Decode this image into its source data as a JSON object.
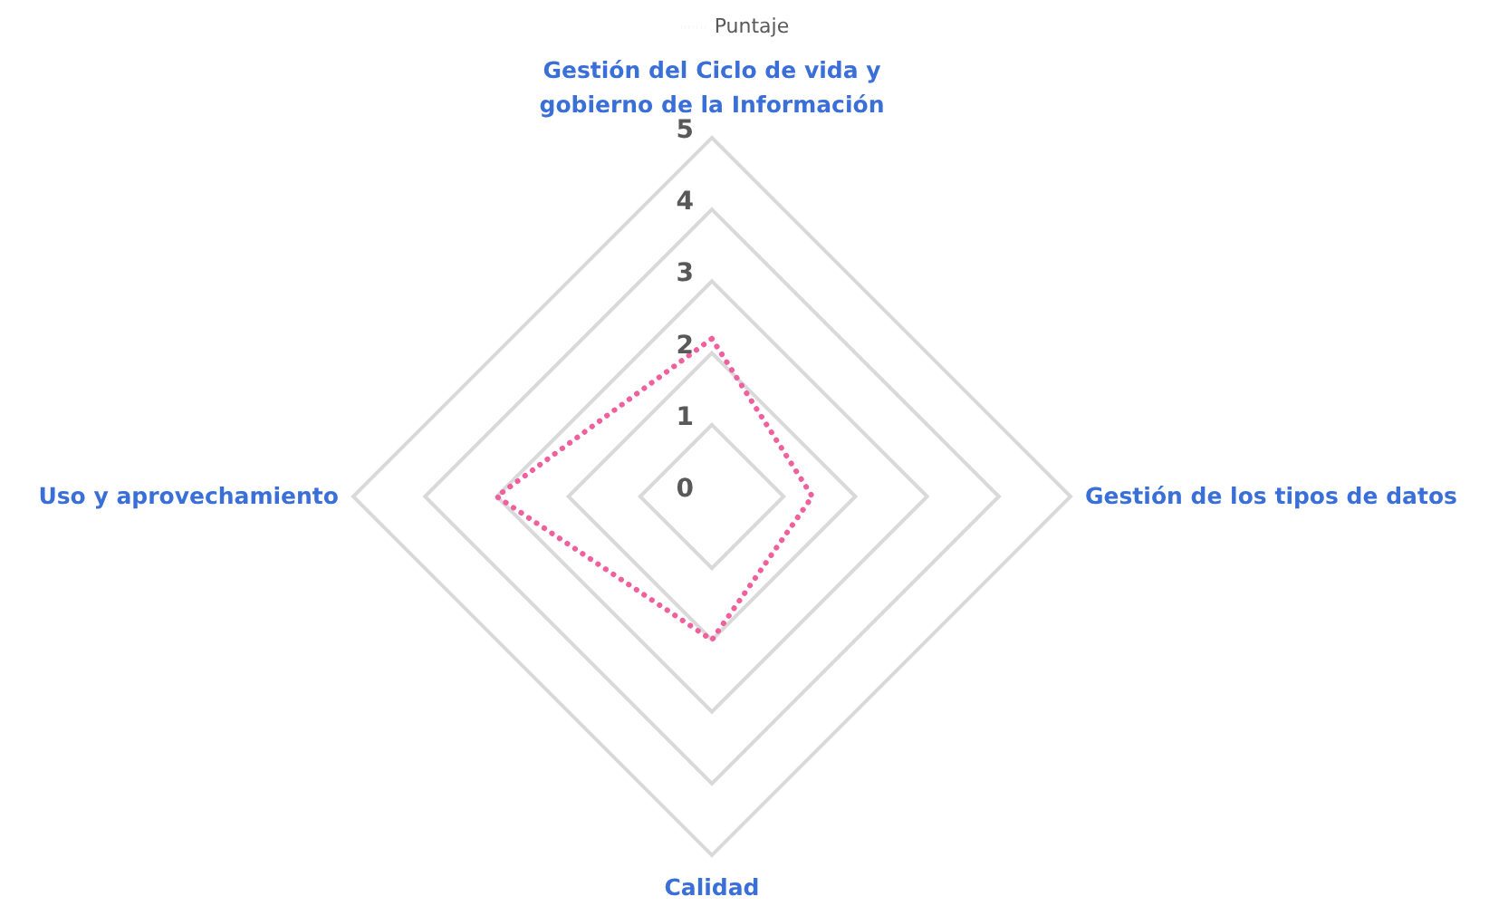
{
  "chart_data": {
    "type": "radar",
    "categories": [
      "Gestión del Ciclo de vida y gobierno de la Información",
      "Gestión de los tipos de datos",
      "Calidad",
      "Uso y aprovechamiento"
    ],
    "series": [
      {
        "name": "Puntaje",
        "color": "#f0609e",
        "values": [
          2.2,
          1.4,
          2.0,
          3.0
        ]
      }
    ],
    "ylim": [
      0,
      5
    ],
    "yticks": [
      0,
      1,
      2,
      3,
      4,
      5
    ],
    "grid": true,
    "legend": "top",
    "marker": "none",
    "line_style": "dotted"
  }
}
